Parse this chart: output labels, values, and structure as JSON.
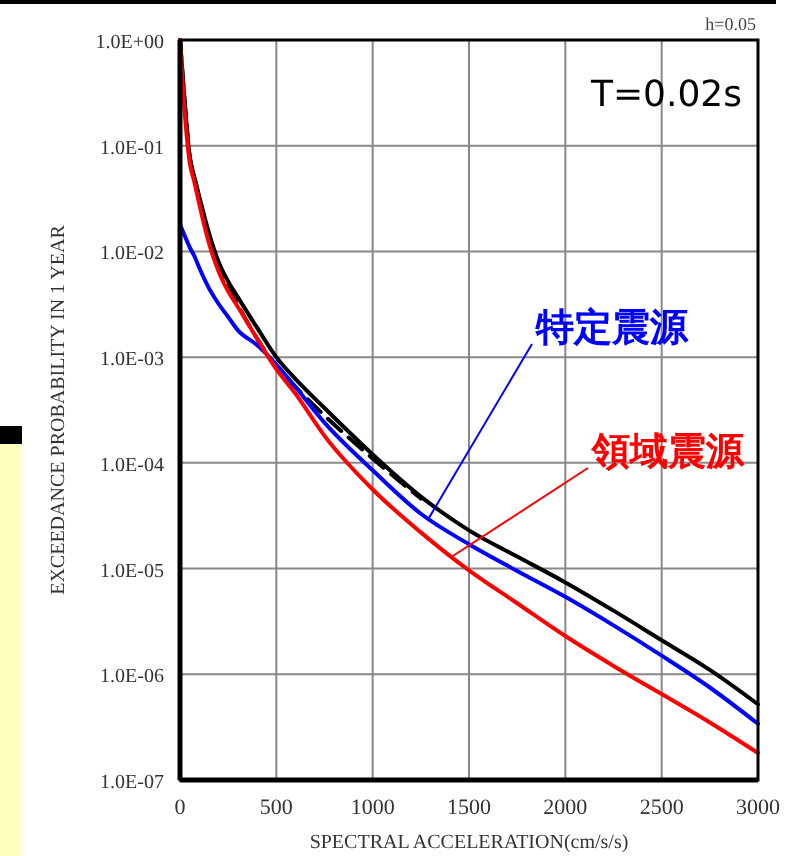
{
  "chart_data": {
    "type": "line",
    "xlabel": "SPECTRAL ACCELERATION(cm/s/s)",
    "ylabel": "EXCEEDANCE PROBABILITY IN 1 YEAR",
    "x": [
      0,
      25,
      50,
      75,
      100,
      150,
      200,
      250,
      300,
      400,
      500,
      600,
      750,
      1000,
      1250,
      1500,
      1750,
      2000,
      2250,
      2500,
      2750,
      3000
    ],
    "series": [
      {
        "color": "#000000",
        "values": [
          1,
          0.25,
          0.08,
          0.05,
          0.033,
          0.015,
          0.008,
          0.0052,
          0.0037,
          0.0019,
          0.001,
          0.00062,
          0.00033,
          0.00012,
          4.8e-05,
          2.3e-05,
          1.3e-05,
          7.4e-06,
          4e-06,
          2.1e-06,
          1.1e-06,
          5.2e-07
        ]
      },
      {
        "color": "#000000",
        "line_style": "dashed",
        "values": [
          1,
          0.25,
          0.08,
          0.05,
          0.032,
          0.014,
          0.0072,
          0.0045,
          0.0031,
          0.0015,
          0.0008,
          0.00052,
          0.00028,
          0.00011,
          4.6e-05,
          null,
          null,
          null,
          null,
          null,
          null,
          null
        ]
      },
      {
        "name": "特定震源",
        "color": "#0000ff",
        "values": [
          0.018,
          0.014,
          0.011,
          0.009,
          0.007,
          0.0045,
          0.0032,
          0.0024,
          0.0018,
          0.0013,
          0.00085,
          0.00052,
          0.00024,
          8.5e-05,
          3.3e-05,
          1.7e-05,
          9.5e-06,
          5.4e-06,
          2.9e-06,
          1.5e-06,
          7.5e-07,
          3.4e-07
        ]
      },
      {
        "name": "領域震源",
        "color": "#ff0000",
        "values": [
          1,
          0.2,
          0.07,
          0.045,
          0.028,
          0.012,
          0.0065,
          0.0042,
          0.003,
          0.0015,
          0.00077,
          0.00045,
          0.00018,
          5.6e-05,
          2.2e-05,
          9.6e-06,
          4.7e-06,
          2.3e-06,
          1.2e-06,
          6.5e-07,
          3.5e-07,
          1.8e-07
        ]
      }
    ],
    "xlim": [
      0,
      3000
    ],
    "xticks": [
      0,
      500,
      1000,
      1500,
      2000,
      2500,
      3000
    ],
    "log": true,
    "ylim": [
      1e-07,
      1
    ],
    "yticks": [
      {
        "value": 1,
        "label": "1.0E+00"
      },
      {
        "value": 0.1,
        "label": "1.0E-01"
      },
      {
        "value": 0.01,
        "label": "1.0E-02"
      },
      {
        "value": 0.001,
        "label": "1.0E-03"
      },
      {
        "value": 0.0001,
        "label": "1.0E-04"
      },
      {
        "value": 1e-05,
        "label": "1.0E-05"
      },
      {
        "value": 1e-06,
        "label": "1.0E-06"
      },
      {
        "value": 1e-07,
        "label": "1.0E-07"
      }
    ],
    "grid": true,
    "annotations": [
      "T=0.02s",
      "h=0.05"
    ]
  }
}
